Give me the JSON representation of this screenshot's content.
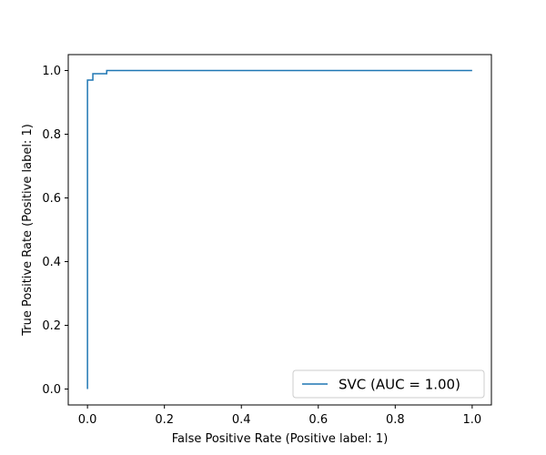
{
  "chart_data": {
    "type": "line",
    "title": "",
    "xlabel": "False Positive Rate (Positive label: 1)",
    "ylabel": "True Positive Rate (Positive label: 1)",
    "xlim": [
      -0.05,
      1.05
    ],
    "ylim": [
      -0.05,
      1.05
    ],
    "xticks": [
      0.0,
      0.2,
      0.4,
      0.6,
      0.8,
      1.0
    ],
    "yticks": [
      0.0,
      0.2,
      0.4,
      0.6,
      0.8,
      1.0
    ],
    "xtick_labels": [
      "0.0",
      "0.2",
      "0.4",
      "0.6",
      "0.8",
      "1.0"
    ],
    "ytick_labels": [
      "0.0",
      "0.2",
      "0.4",
      "0.6",
      "0.8",
      "1.0"
    ],
    "grid": false,
    "legend_position": "lower-right",
    "series": [
      {
        "name": "SVC (AUC = 1.00)",
        "color": "#1f77b4",
        "step": true,
        "x": [
          0.0,
          0.0,
          0.0,
          0.014,
          0.014,
          0.05,
          0.05,
          1.0
        ],
        "y": [
          0.0,
          0.0,
          0.97,
          0.97,
          0.99,
          0.99,
          1.0,
          1.0
        ]
      }
    ]
  }
}
